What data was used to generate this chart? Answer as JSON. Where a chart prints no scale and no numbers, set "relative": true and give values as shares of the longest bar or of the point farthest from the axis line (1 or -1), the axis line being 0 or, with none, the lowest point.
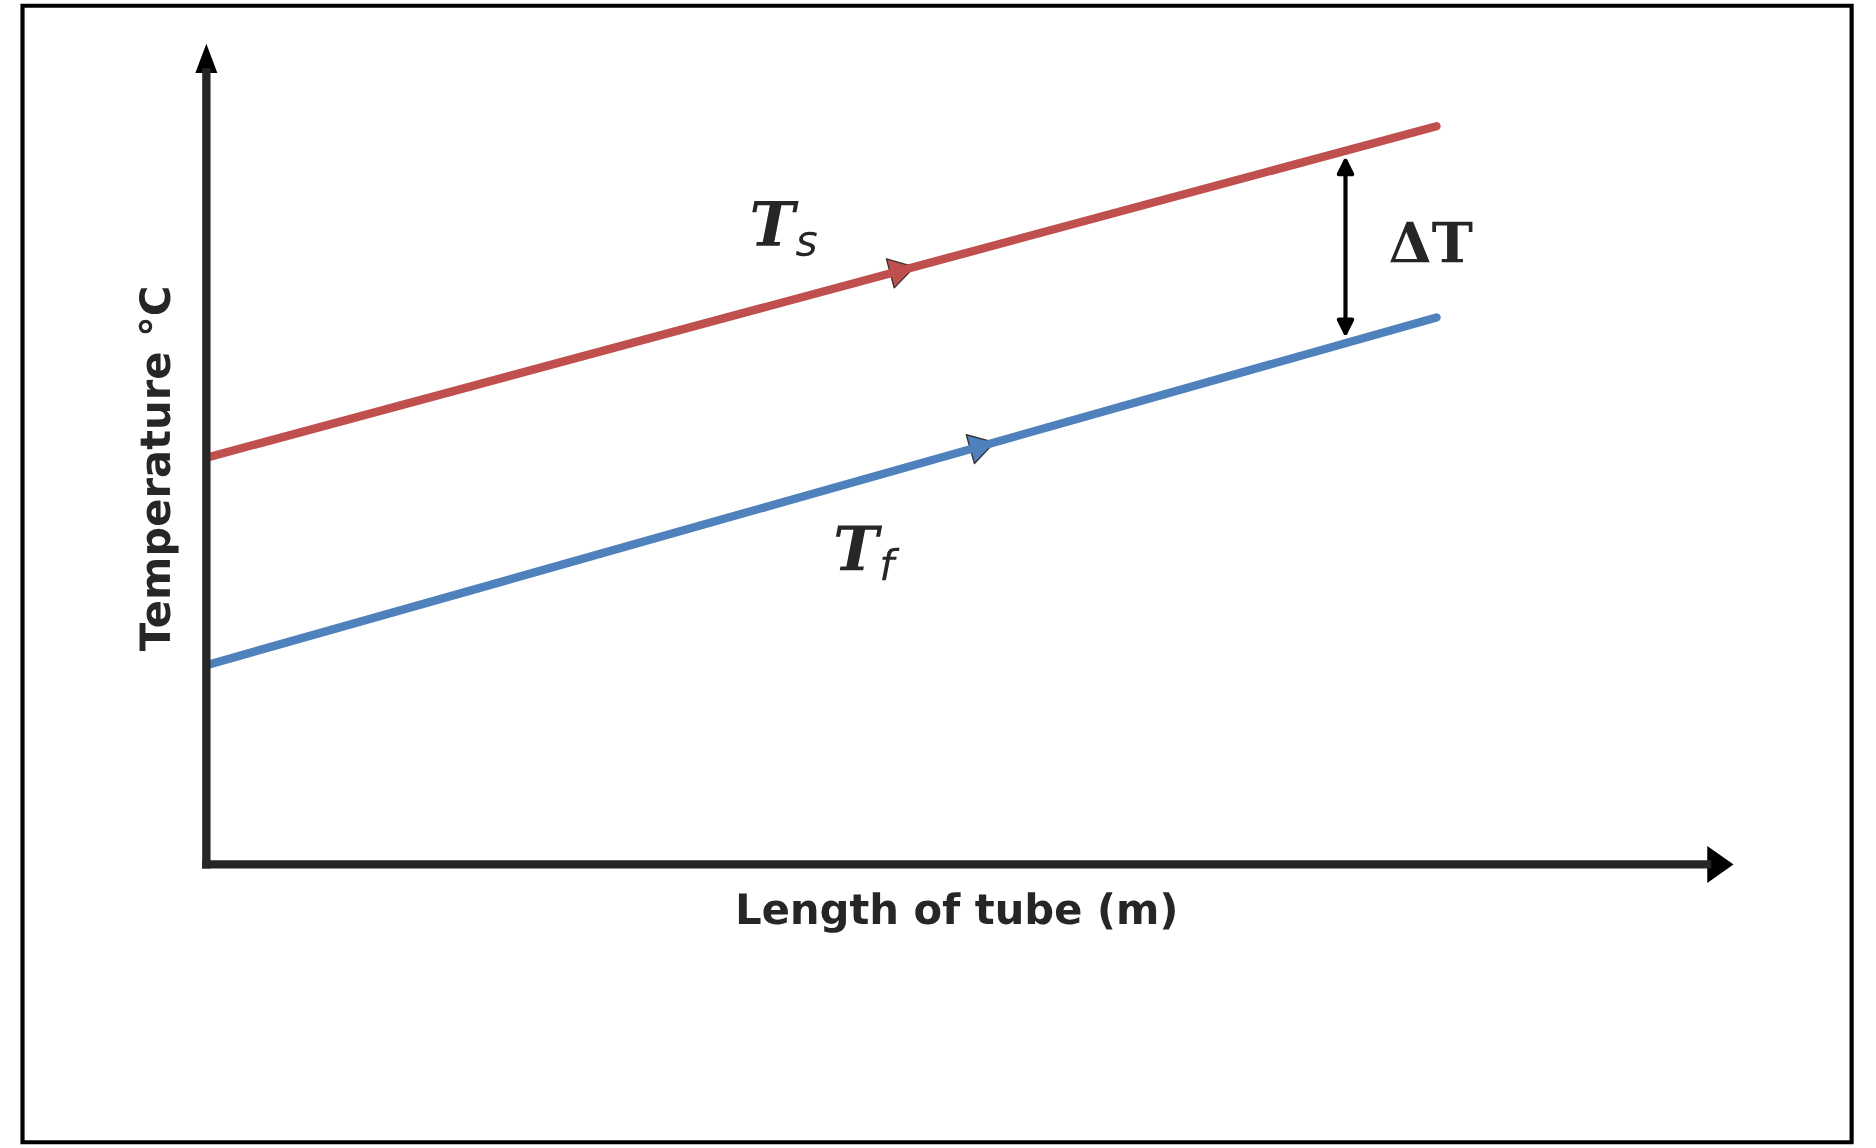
{
  "chart_data": {
    "type": "line",
    "relative": true,
    "xlabel": "Length of tube (m)",
    "ylabel": "Temperature °C",
    "tick_labels": false,
    "legend": false,
    "marker": "none",
    "line_style": "solid",
    "categories": [
      null,
      null
    ],
    "series": [
      {
        "color": "#c0504d",
        "values": [
          0.551,
          1.0
        ]
      },
      {
        "color": "#4f81bd",
        "values": [
          0.27,
          0.741
        ]
      }
    ],
    "annotations": [
      "T$_{s}$",
      "T$_{f}$",
      "ΔT"
    ]
  }
}
